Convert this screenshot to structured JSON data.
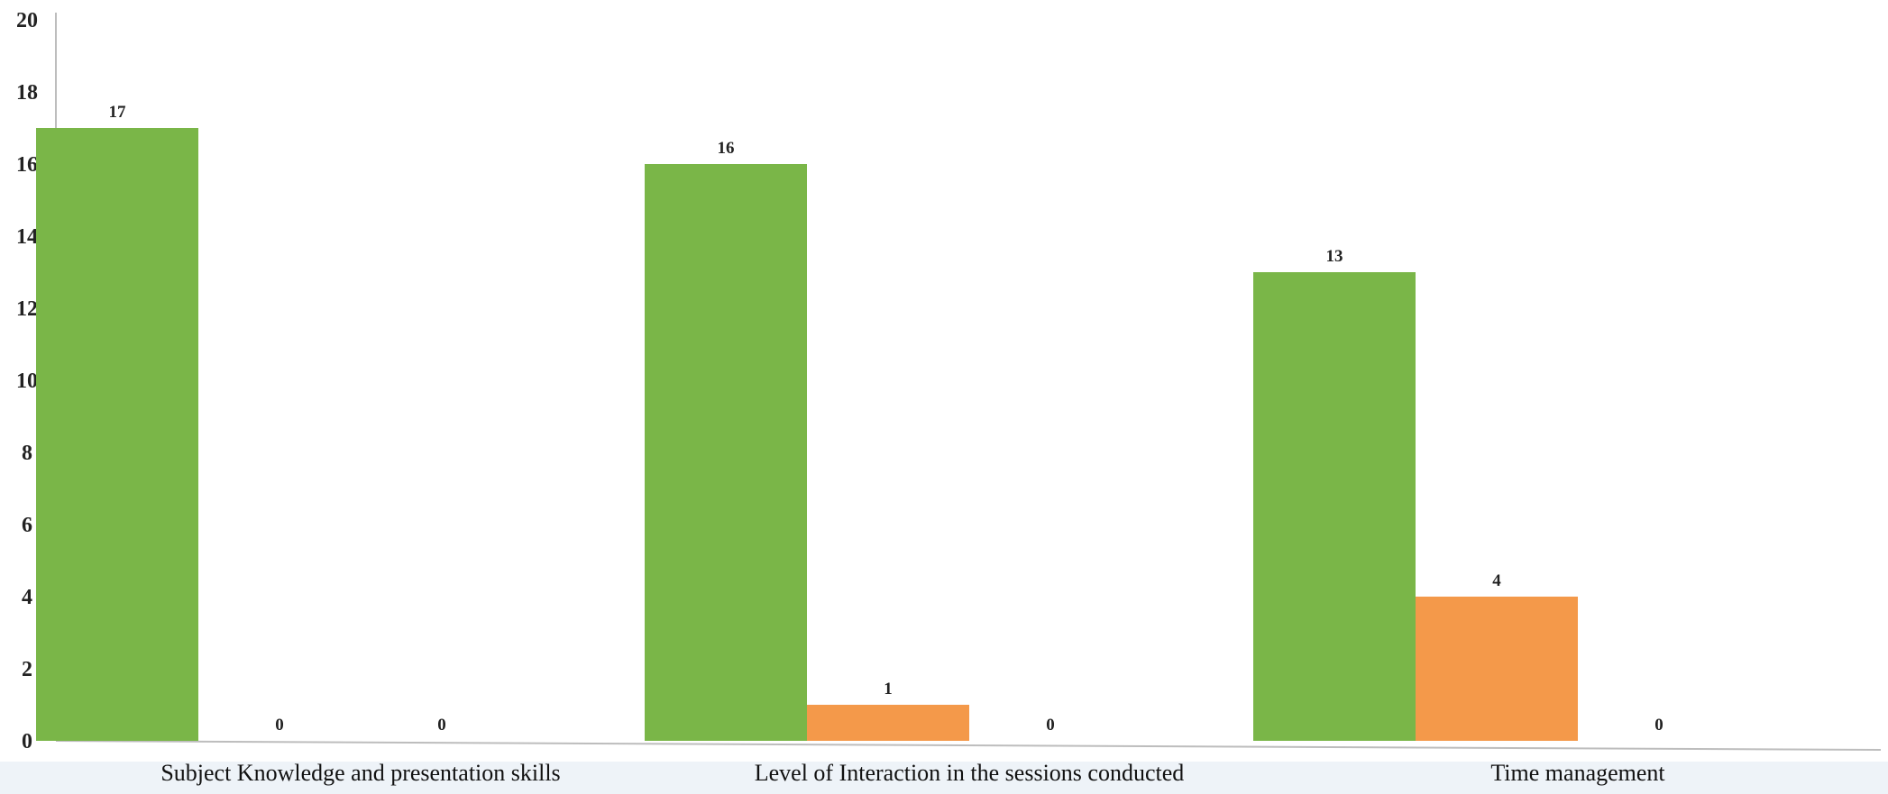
{
  "chart_data": {
    "type": "bar",
    "categories": [
      "Subject Knowledge and presentation skills",
      "Level of Interaction in the sessions conducted",
      "Time management"
    ],
    "series": [
      {
        "values": [
          17,
          16,
          13
        ],
        "color": "#7ab648"
      },
      {
        "values": [
          0,
          1,
          4
        ],
        "color": "#f4994a"
      },
      {
        "values": [
          0,
          0,
          0
        ],
        "color": "#a5a5a5"
      }
    ],
    "data_labels": [
      [
        "17",
        "0",
        "0"
      ],
      [
        "16",
        "1",
        "0"
      ],
      [
        "13",
        "4",
        "0"
      ]
    ],
    "yticks": [
      0,
      2,
      4,
      6,
      8,
      10,
      12,
      14,
      16,
      18,
      20
    ],
    "ylim": [
      0,
      20
    ],
    "title": "",
    "xlabel": "",
    "ylabel": "",
    "grid": false,
    "legend": "none"
  }
}
